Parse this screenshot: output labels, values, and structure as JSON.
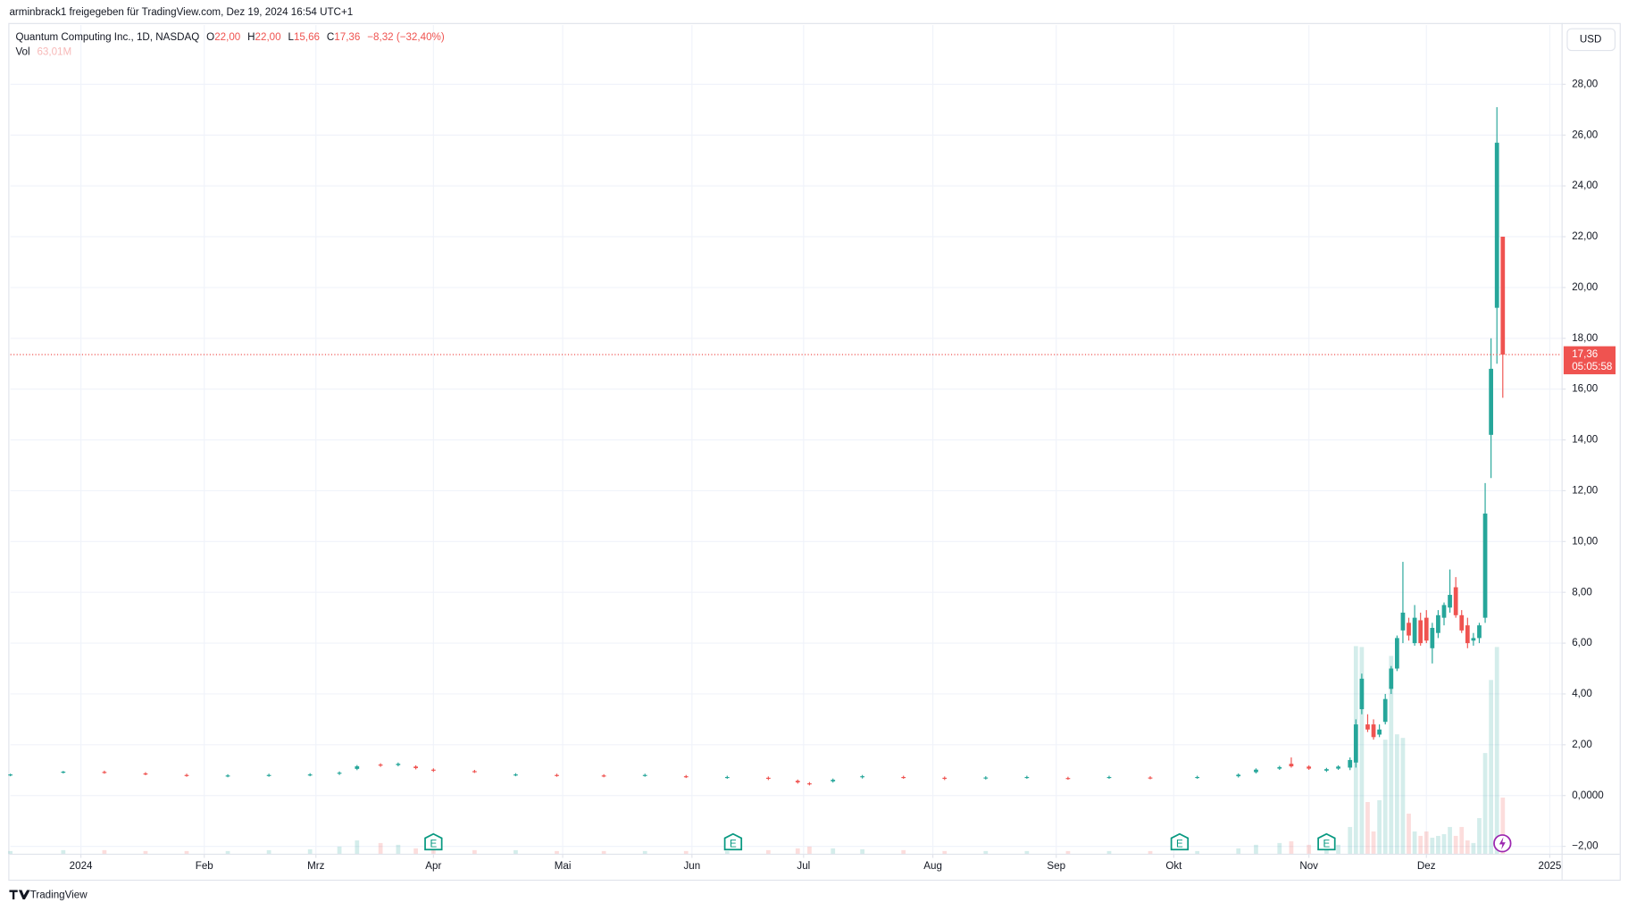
{
  "page": {
    "share_note": "arminbrack1 freigegeben für TradingView.com, Dez 19, 2024 16:54 UTC+1",
    "brand": "TradingView"
  },
  "chart_data": {
    "type": "candlestick",
    "symbol": "Quantum Computing Inc., 1D, NASDAQ",
    "legend": {
      "o_label": "O",
      "o_value": "22,00",
      "h_label": "H",
      "h_value": "22,00",
      "l_label": "L",
      "l_value": "15,66",
      "c_label": "C",
      "c_value": "17,36",
      "change": "−8,32 (−32,40%)",
      "vol_label": "Vol",
      "vol_value": "63,01M"
    },
    "currency": "USD",
    "last_price_label": "17,36",
    "countdown": "05:05:58",
    "last_price": 17.36,
    "up_color": "#26a69a",
    "down_color": "#ef5350",
    "grid": true,
    "x": [
      15,
      24,
      31,
      38,
      45,
      52,
      59,
      66,
      71,
      74,
      78,
      81,
      84,
      87,
      94,
      101,
      108,
      116,
      123,
      130,
      137,
      144,
      149,
      151,
      155,
      160,
      167,
      174,
      181,
      188,
      195,
      202,
      209,
      217,
      224,
      227,
      231,
      233,
      236,
      239,
      241,
      243,
      244,
      245,
      246,
      247,
      248,
      249,
      250,
      251,
      252,
      253,
      254,
      255,
      256,
      257,
      258,
      259,
      260,
      261,
      262,
      263,
      264,
      265,
      266,
      267,
      268,
      269
    ],
    "open": [
      0.81,
      0.92,
      0.93,
      0.87,
      0.81,
      0.77,
      0.79,
      0.81,
      0.86,
      1.05,
      1.22,
      1.2,
      1.14,
      1.02,
      0.96,
      0.81,
      0.81,
      0.79,
      0.79,
      0.76,
      0.71,
      0.7,
      0.58,
      0.48,
      0.56,
      0.72,
      0.73,
      0.7,
      0.68,
      0.71,
      0.69,
      0.71,
      0.71,
      0.71,
      0.76,
      0.92,
      1.06,
      1.25,
      1.14,
      0.98,
      1.06,
      1.1,
      1.3,
      3.4,
      2.8,
      2.8,
      2.4,
      2.9,
      4.2,
      5.0,
      6.5,
      6.8,
      6.0,
      6.9,
      7.0,
      5.8,
      6.4,
      7.0,
      7.4,
      8.2,
      7.1,
      6.7,
      6.1,
      6.2,
      7.0,
      14.2,
      19.2,
      22.0
    ],
    "high": [
      0.86,
      0.97,
      0.98,
      0.92,
      0.86,
      0.84,
      0.86,
      0.88,
      0.95,
      1.2,
      1.27,
      1.3,
      1.19,
      1.07,
      1.01,
      0.88,
      0.86,
      0.84,
      0.86,
      0.81,
      0.78,
      0.75,
      0.63,
      0.53,
      0.67,
      0.81,
      0.78,
      0.75,
      0.76,
      0.78,
      0.74,
      0.78,
      0.76,
      0.78,
      0.87,
      1.07,
      1.17,
      1.5,
      1.19,
      1.09,
      1.19,
      1.5,
      3.0,
      4.8,
      3.2,
      3.0,
      2.8,
      4.0,
      5.1,
      6.3,
      9.2,
      7.0,
      7.5,
      7.2,
      7.3,
      6.8,
      7.3,
      7.6,
      8.9,
      8.6,
      7.3,
      7.0,
      6.4,
      6.8,
      12.3,
      18.0,
      27.1,
      22.0
    ],
    "low": [
      0.76,
      0.87,
      0.86,
      0.8,
      0.74,
      0.72,
      0.74,
      0.76,
      0.81,
      1.0,
      1.13,
      1.15,
      1.03,
      0.93,
      0.89,
      0.76,
      0.74,
      0.72,
      0.74,
      0.69,
      0.66,
      0.61,
      0.47,
      0.4,
      0.51,
      0.67,
      0.66,
      0.61,
      0.63,
      0.66,
      0.62,
      0.66,
      0.64,
      0.66,
      0.71,
      0.87,
      1.01,
      1.1,
      1.01,
      0.93,
      1.01,
      1.0,
      1.1,
      3.2,
      2.5,
      2.2,
      2.3,
      2.8,
      4.0,
      4.9,
      6.0,
      6.1,
      5.9,
      5.9,
      6.0,
      5.2,
      6.2,
      6.7,
      7.2,
      7.0,
      6.4,
      5.8,
      5.9,
      6.0,
      6.8,
      12.5,
      17.0,
      15.66
    ],
    "close": [
      0.83,
      0.94,
      0.91,
      0.85,
      0.79,
      0.79,
      0.81,
      0.83,
      0.9,
      1.15,
      1.18,
      1.25,
      1.08,
      0.98,
      0.94,
      0.83,
      0.79,
      0.77,
      0.81,
      0.74,
      0.73,
      0.66,
      0.52,
      0.44,
      0.62,
      0.76,
      0.71,
      0.66,
      0.71,
      0.73,
      0.67,
      0.73,
      0.69,
      0.73,
      0.82,
      1.02,
      1.12,
      1.15,
      1.06,
      1.04,
      1.14,
      1.4,
      2.8,
      4.6,
      2.6,
      2.3,
      2.6,
      3.8,
      5.0,
      6.2,
      7.2,
      6.3,
      7.0,
      6.0,
      6.1,
      6.6,
      7.1,
      7.5,
      7.9,
      7.1,
      6.5,
      6.0,
      6.2,
      6.7,
      11.1,
      16.8,
      25.7,
      17.36
    ],
    "volume": [
      3,
      4,
      4,
      3,
      3,
      3,
      4,
      5,
      8,
      15,
      12,
      10,
      6,
      5,
      4,
      4,
      3,
      3,
      3,
      3,
      3,
      4,
      6,
      8,
      6,
      5,
      4,
      3,
      3,
      3,
      3,
      3,
      3,
      3,
      6,
      10,
      12,
      14,
      10,
      8,
      10,
      30,
      233,
      232,
      58,
      25,
      60,
      128,
      222,
      134,
      130,
      45,
      25,
      20,
      25,
      18,
      20,
      22,
      30,
      20,
      30,
      15,
      12,
      40,
      113,
      195,
      232,
      63.01
    ],
    "xlim": [
      15,
      279
    ],
    "xticks": [
      {
        "value": 27,
        "label": "2024"
      },
      {
        "value": 48,
        "label": "Feb"
      },
      {
        "value": 67,
        "label": "Mrz"
      },
      {
        "value": 87,
        "label": "Apr"
      },
      {
        "value": 109,
        "label": "Mai"
      },
      {
        "value": 131,
        "label": "Jun"
      },
      {
        "value": 150,
        "label": "Jul"
      },
      {
        "value": 172,
        "label": "Aug"
      },
      {
        "value": 193,
        "label": "Sep"
      },
      {
        "value": 213,
        "label": "Okt"
      },
      {
        "value": 236,
        "label": "Nov"
      },
      {
        "value": 256,
        "label": "Dez"
      },
      {
        "value": 277,
        "label": "2025"
      }
    ],
    "ylim": [
      -2.29,
      30.33
    ],
    "yticks": [
      {
        "value": -2,
        "label": "−2,00"
      },
      {
        "value": 0,
        "label": "0,0000"
      },
      {
        "value": 2,
        "label": "2,00"
      },
      {
        "value": 4,
        "label": "4,00"
      },
      {
        "value": 6,
        "label": "6,00"
      },
      {
        "value": 8,
        "label": "8,00"
      },
      {
        "value": 10,
        "label": "10,00"
      },
      {
        "value": 12,
        "label": "12,00"
      },
      {
        "value": 14,
        "label": "14,00"
      },
      {
        "value": 16,
        "label": "16,00"
      },
      {
        "value": 18,
        "label": "18,00"
      },
      {
        "value": 20,
        "label": "20,00"
      },
      {
        "value": 22,
        "label": "22,00"
      },
      {
        "value": 24,
        "label": "24,00"
      },
      {
        "value": 26,
        "label": "26,00"
      },
      {
        "value": 28,
        "label": "28,00"
      }
    ],
    "volume_lim": [
      0,
      930
    ],
    "events": [
      {
        "x": 87,
        "label": "E"
      },
      {
        "x": 138,
        "label": "E"
      },
      {
        "x": 214,
        "label": "E"
      },
      {
        "x": 239,
        "label": "E"
      }
    ]
  }
}
